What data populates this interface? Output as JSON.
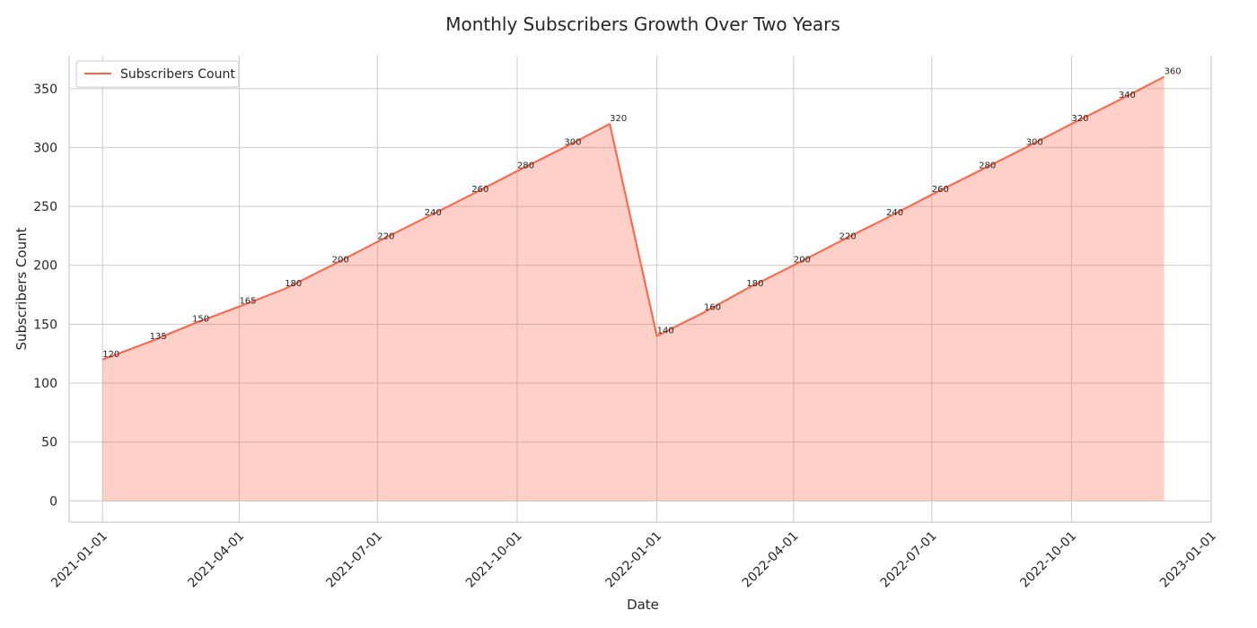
{
  "chart_data": {
    "type": "area",
    "title": "Monthly Subscribers Growth Over Two Years",
    "xlabel": "Date",
    "ylabel": "Subscribers Count",
    "legend": {
      "position": "top-left",
      "entries": [
        "Subscribers Count"
      ]
    },
    "grid": true,
    "x": [
      "2021-01-01",
      "2021-02-01",
      "2021-03-01",
      "2021-04-01",
      "2021-05-01",
      "2021-06-01",
      "2021-07-01",
      "2021-08-01",
      "2021-09-01",
      "2021-10-01",
      "2021-11-01",
      "2021-12-01",
      "2022-01-01",
      "2022-02-01",
      "2022-03-01",
      "2022-04-01",
      "2022-05-01",
      "2022-06-01",
      "2022-07-01",
      "2022-08-01",
      "2022-09-01",
      "2022-10-01",
      "2022-11-01",
      "2022-12-01"
    ],
    "series": [
      {
        "name": "Subscribers Count",
        "values": [
          120,
          135,
          150,
          165,
          180,
          200,
          220,
          240,
          260,
          280,
          300,
          320,
          140,
          160,
          180,
          200,
          220,
          240,
          260,
          280,
          300,
          320,
          340,
          360
        ]
      }
    ],
    "xlim": [
      "2020-12-10",
      "2023-01-01"
    ],
    "ylim": [
      -18,
      378
    ],
    "x_ticks": [
      "2021-01-01",
      "2021-04-01",
      "2021-07-01",
      "2021-10-01",
      "2022-01-01",
      "2022-04-01",
      "2022-07-01",
      "2022-10-01",
      "2023-01-01"
    ],
    "y_ticks": [
      0,
      50,
      100,
      150,
      200,
      250,
      300,
      350
    ],
    "colors": {
      "line": "#ff6347",
      "fill": "#ffcdc6",
      "grid": "#cccccc"
    }
  }
}
